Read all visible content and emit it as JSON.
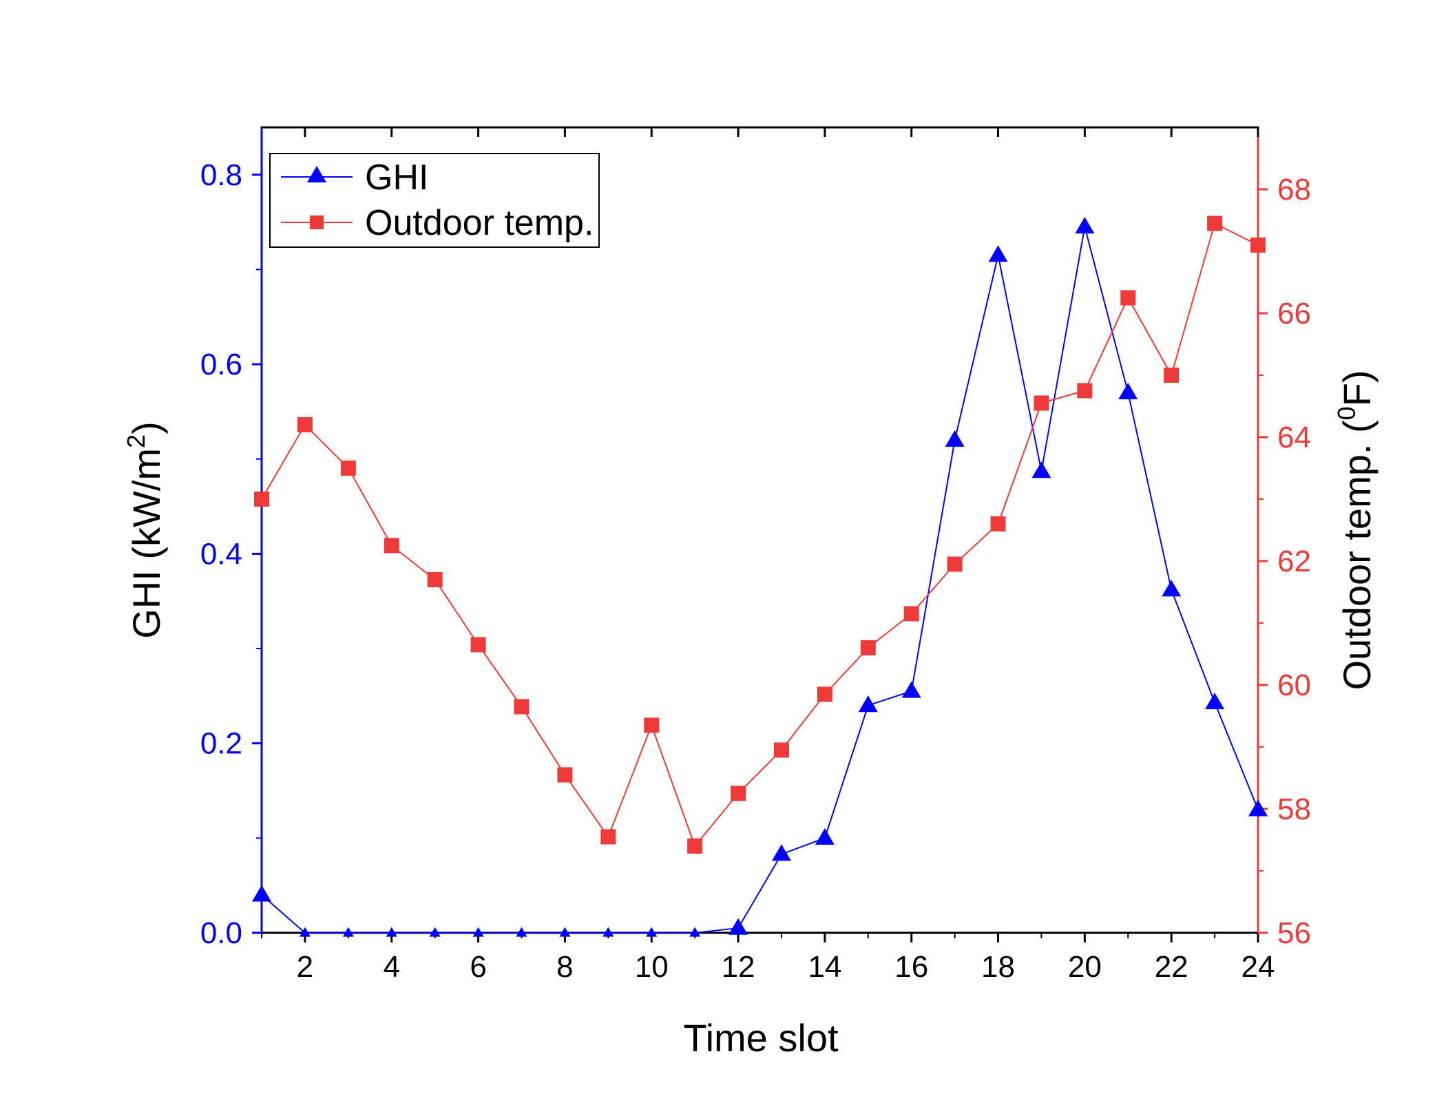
{
  "chart_data": {
    "type": "line",
    "title": "",
    "xlabel": "Time slot",
    "x": [
      1,
      2,
      3,
      4,
      5,
      6,
      7,
      8,
      9,
      10,
      11,
      12,
      13,
      14,
      15,
      16,
      17,
      18,
      19,
      20,
      21,
      22,
      23,
      24
    ],
    "xlim": [
      1,
      24
    ],
    "xticks": [
      2,
      4,
      6,
      8,
      10,
      12,
      14,
      16,
      18,
      20,
      22,
      24
    ],
    "y_left": {
      "label_prefix": "GHI (kW/m",
      "label_sup": "2",
      "label_suffix": ")",
      "ylim": [
        0,
        0.85
      ],
      "ticks": [
        0.0,
        0.2,
        0.4,
        0.6,
        0.8
      ],
      "tick_labels": [
        "0.0",
        "0.2",
        "0.4",
        "0.6",
        "0.8"
      ],
      "color": "#0000ff"
    },
    "y_right": {
      "label_prefix": "Outdoor temp. (",
      "label_sup": "0",
      "label_suffix": "F)",
      "ylim": [
        56,
        69
      ],
      "ticks": [
        56,
        58,
        60,
        62,
        64,
        66,
        68
      ],
      "tick_labels": [
        "56",
        "58",
        "60",
        "62",
        "64",
        "66",
        "68"
      ],
      "color": "#ef3a3a"
    },
    "series": [
      {
        "name": "GHI",
        "axis": "left",
        "marker": "triangle",
        "color": "#0000ff",
        "values": [
          0.04,
          0.0,
          0.0,
          0.0,
          0.0,
          0.0,
          0.0,
          0.0,
          0.0,
          0.0,
          0.0,
          0.005,
          0.083,
          0.1,
          0.24,
          0.255,
          0.52,
          0.715,
          0.487,
          0.745,
          0.57,
          0.362,
          0.243,
          0.13
        ]
      },
      {
        "name": "Outdoor temp.",
        "axis": "right",
        "marker": "square",
        "color": "#ef3a3a",
        "values": [
          63.0,
          64.2,
          63.5,
          62.25,
          61.7,
          60.65,
          59.65,
          58.55,
          57.55,
          59.35,
          57.4,
          58.25,
          58.95,
          59.85,
          60.6,
          61.15,
          61.95,
          62.6,
          64.55,
          64.75,
          66.25,
          65.0,
          67.45,
          67.1
        ]
      }
    ],
    "legend": {
      "position": "top-left",
      "entries": [
        "GHI",
        "Outdoor temp."
      ]
    }
  }
}
